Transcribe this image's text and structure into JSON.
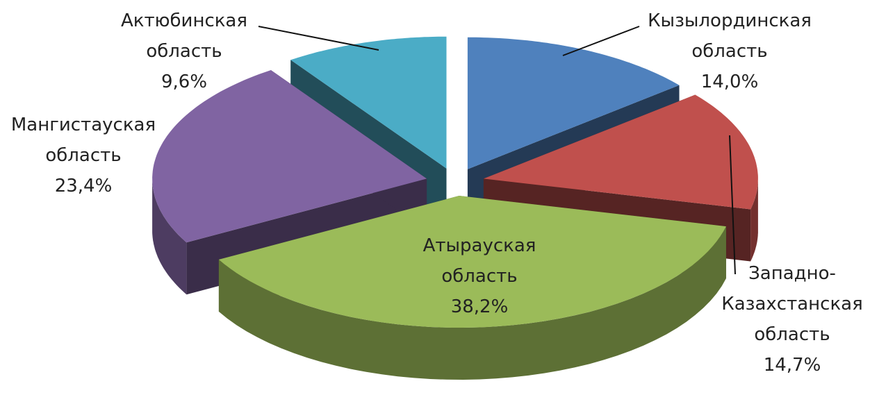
{
  "chart_data": {
    "type": "pie",
    "categories": [
      "Кызылординская область",
      "Западно-Казахстанская область",
      "Атырауская область",
      "Мангистауская область",
      "Актюбинская область"
    ],
    "values": [
      14.0,
      14.7,
      38.2,
      23.4,
      9.6
    ],
    "value_labels": [
      "14,0%",
      "14,7%",
      "38,2%",
      "23,4%",
      "9,6%"
    ],
    "colors": [
      "#4f81bd",
      "#c0504d",
      "#9bbb59",
      "#8064a2",
      "#4bacc6"
    ]
  }
}
